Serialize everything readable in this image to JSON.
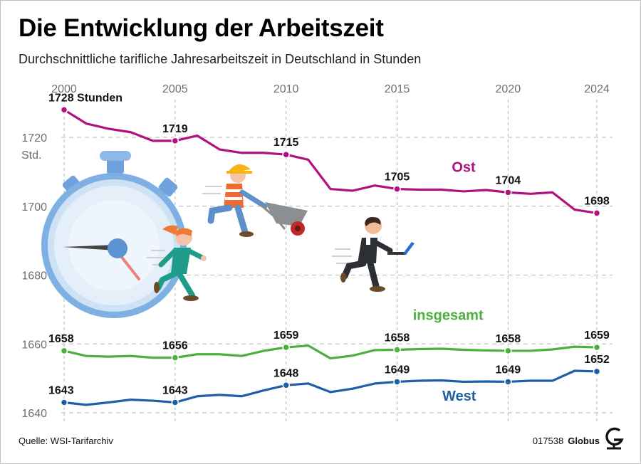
{
  "title": "Die Entwicklung der Arbeitszeit",
  "subtitle": "Durchschnittliche tarifliche Jahresarbeitszeit in Deutschland in Stunden",
  "source": "Quelle: WSI-Tarifarchiv",
  "graphic_id": "017538",
  "brand": "Globus",
  "colors": {
    "ost": "#b0117e",
    "insgesamt": "#4caf3e",
    "west": "#1f5fa6",
    "grid": "#b5b5b5"
  },
  "icons": [
    "stopwatch-icon",
    "woman-running-icon",
    "worker-wheelbarrow-icon",
    "businessman-laptop-icon",
    "globus-logo-icon"
  ],
  "chart_data": {
    "type": "line",
    "x_ticks": [
      2000,
      2005,
      2010,
      2015,
      2020,
      2024
    ],
    "y_ticks": [
      1640,
      1660,
      1680,
      1700,
      1720
    ],
    "y_unit": "Std.",
    "ylim": [
      1638,
      1730
    ],
    "xlim": [
      2000,
      2024
    ],
    "grid": "horizontal dashed and vertical at labelled years",
    "x": [
      2000,
      2001,
      2002,
      2003,
      2004,
      2005,
      2006,
      2007,
      2008,
      2009,
      2010,
      2011,
      2012,
      2013,
      2014,
      2015,
      2016,
      2017,
      2018,
      2019,
      2020,
      2021,
      2022,
      2023,
      2024
    ],
    "series": [
      {
        "key": "ost",
        "name": "Ost",
        "values": [
          1728,
          1724,
          1722.5,
          1721.5,
          1719,
          1719,
          1720.5,
          1716.5,
          1715.5,
          1715.5,
          1715,
          1713.5,
          1705,
          1704.5,
          1706,
          1705,
          1704.8,
          1704.8,
          1704.3,
          1704.7,
          1704,
          1703.6,
          1704,
          1699,
          1698
        ],
        "labels": [
          {
            "x": 2000,
            "text": "1728 Stunden"
          },
          {
            "x": 2005,
            "text": "1719"
          },
          {
            "x": 2010,
            "text": "1715"
          },
          {
            "x": 2015,
            "text": "1705"
          },
          {
            "x": 2020,
            "text": "1704"
          },
          {
            "x": 2024,
            "text": "1698"
          }
        ]
      },
      {
        "key": "insgesamt",
        "name": "insgesamt",
        "values": [
          1658,
          1656.5,
          1656.3,
          1656.5,
          1656,
          1656,
          1657,
          1657,
          1656.5,
          1658,
          1659,
          1659.5,
          1655.8,
          1656.6,
          1658.2,
          1658.3,
          1658.5,
          1658.6,
          1658.3,
          1658.1,
          1658,
          1658,
          1658.4,
          1659.2,
          1659
        ],
        "labels": [
          {
            "x": 2000,
            "text": "1658"
          },
          {
            "x": 2005,
            "text": "1656"
          },
          {
            "x": 2010,
            "text": "1659"
          },
          {
            "x": 2015,
            "text": "1658"
          },
          {
            "x": 2020,
            "text": "1658"
          },
          {
            "x": 2024,
            "text": "1659"
          }
        ]
      },
      {
        "key": "west",
        "name": "West",
        "values": [
          1643,
          1642.3,
          1643,
          1643.8,
          1643.5,
          1643,
          1644.8,
          1645.2,
          1644.8,
          1646.5,
          1648,
          1648.5,
          1646,
          1647,
          1648.5,
          1649,
          1649.3,
          1649.4,
          1649,
          1649.1,
          1649,
          1649.3,
          1649.3,
          1652.2,
          1652
        ],
        "labels": [
          {
            "x": 2000,
            "text": "1643"
          },
          {
            "x": 2005,
            "text": "1643"
          },
          {
            "x": 2010,
            "text": "1648"
          },
          {
            "x": 2015,
            "text": "1649"
          },
          {
            "x": 2020,
            "text": "1649"
          },
          {
            "x": 2024,
            "text": "1652"
          }
        ]
      }
    ]
  }
}
